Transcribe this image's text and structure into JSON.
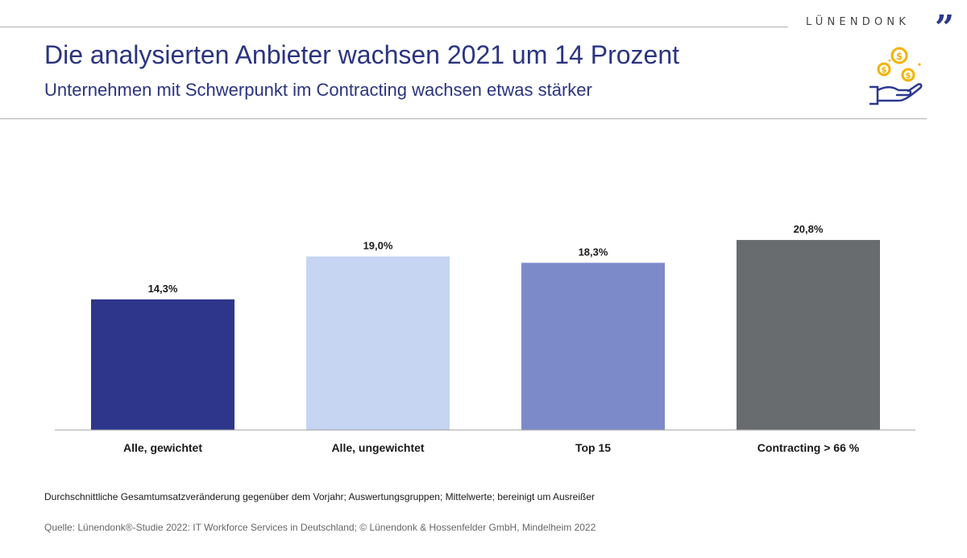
{
  "header": {
    "brand": "LÜNENDONK",
    "brand_mark": "”",
    "title": "Die analysierten Anbieter wachsen 2021 um 14 Prozent",
    "subtitle": "Unternehmen mit Schwerpunkt im Contracting wachsen etwas stärker"
  },
  "icons": {
    "header_icon": "hand-with-coins-icon"
  },
  "chart_data": {
    "type": "bar",
    "title": "Die analysierten Anbieter wachsen 2021 um 14 Prozent",
    "subtitle": "Unternehmen mit Schwerpunkt im Contracting wachsen etwas stärker",
    "categories": [
      "Alle, gewichtet",
      "Alle, ungewichtet",
      "Top 15",
      "Contracting > 66 %"
    ],
    "values": [
      14.3,
      19.0,
      18.3,
      20.8
    ],
    "value_labels": [
      "14,3%",
      "19,0%",
      "18,3%",
      "20,8%"
    ],
    "colors": [
      "#2e368c",
      "#c5d5f2",
      "#7d8ac9",
      "#686c6f"
    ],
    "xlabel": "",
    "ylabel": "",
    "ylim": [
      0,
      23.8
    ],
    "grid": false,
    "legend": "none"
  },
  "footer": {
    "footnote": "Durchschnittliche Gesamtumsatzveränderung gegenüber dem Vorjahr; Auswertungsgruppen; Mittelwerte; bereinigt um Ausreißer",
    "source": "Quelle: Lünendonk®-Studie 2022: IT Workforce Services in Deutschland; © Lünendonk & Hossenfelder GmbH, Mindelheim 2022"
  }
}
